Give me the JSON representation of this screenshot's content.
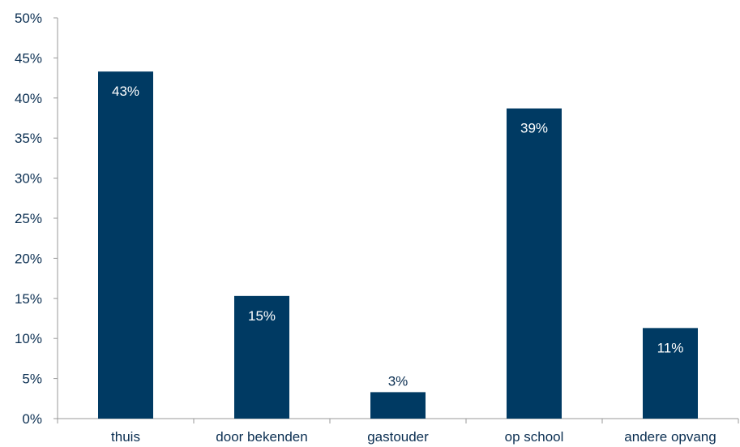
{
  "chart_data": {
    "type": "bar",
    "categories": [
      "thuis",
      "door bekenden",
      "gastouder",
      "op school",
      "andere opvang"
    ],
    "values": [
      43.3,
      15.3,
      3.3,
      38.7,
      11.3
    ],
    "data_labels": [
      "43%",
      "15%",
      "3%",
      "39%",
      "11%"
    ],
    "title": "",
    "xlabel": "",
    "ylabel": "",
    "ylim": [
      0,
      50
    ],
    "yticks": [
      0,
      5,
      10,
      15,
      20,
      25,
      30,
      35,
      40,
      45,
      50
    ],
    "ytick_labels": [
      "0%",
      "5%",
      "10%",
      "15%",
      "20%",
      "25%",
      "30%",
      "35%",
      "40%",
      "45%",
      "50%"
    ],
    "grid": false,
    "legend": "none",
    "colors": {
      "bar": "#003a63",
      "axis": "#999999",
      "text": "#0b2f52",
      "label_inside": "#ffffff",
      "label_outside": "#0b2f52"
    }
  }
}
